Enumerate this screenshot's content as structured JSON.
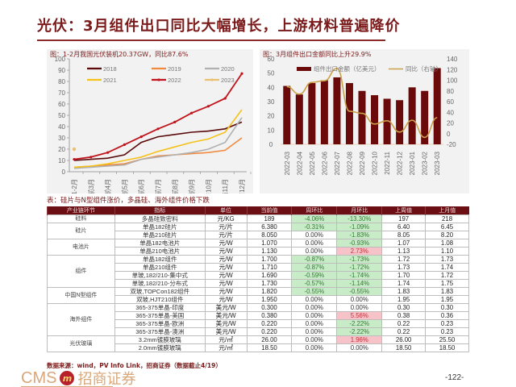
{
  "page": {
    "title": "光伏：3月组件出口同比大幅增长，上游材料普遍降价",
    "page_number": "-122-",
    "source_note": "数据来源：wind，PV Info Link，招商证券（数据截止4/19）",
    "logo": {
      "latin": "CMS",
      "mark": "m",
      "chinese": "招商证券"
    }
  },
  "colors": {
    "brand": "#7a1a1a",
    "table_header": "#6b0f14",
    "positive_cell": "#f6c4c8",
    "negative_cell": "#c8ecc8"
  },
  "chart_data": [
    {
      "type": "line",
      "title": "图：1-2月我国光伏装机20.37GW，同比87.6%",
      "xlabel": "",
      "ylabel": "",
      "ylim": [
        0,
        100
      ],
      "yticks": [
        0,
        10,
        20,
        30,
        40,
        50,
        60,
        70,
        80,
        90,
        100
      ],
      "grid": false,
      "legend_position": "top",
      "categories": [
        "1-2月",
        "前3月",
        "前4月",
        "前5月",
        "前6月",
        "前7月",
        "前8月",
        "前9月",
        "前10月",
        "前11月",
        "前12月"
      ],
      "series": [
        {
          "name": "2018",
          "color": "#5a0a0a",
          "values": [
            10,
            11,
            12,
            15,
            26,
            31,
            33,
            35,
            36,
            38,
            44
          ]
        },
        {
          "name": "2019",
          "color": "#f08a40",
          "values": [
            4,
            5,
            6,
            7,
            11,
            14,
            15,
            16,
            17,
            19,
            30
          ]
        },
        {
          "name": "2020",
          "color": "#b0b0b0",
          "values": [
            3,
            4,
            5,
            6,
            11,
            13,
            15,
            17,
            20,
            26,
            48
          ]
        },
        {
          "name": "2021",
          "color": "#f5c21b",
          "values": [
            4,
            5,
            7,
            10,
            13,
            18,
            22,
            26,
            29,
            35,
            55
          ]
        },
        {
          "name": "2022",
          "color": "#c0141c",
          "values": [
            11,
            13,
            17,
            24,
            31,
            38,
            44,
            52,
            58,
            65,
            87
          ]
        },
        {
          "name": "2023",
          "color": "#e8c070",
          "values": [
            20,
            null,
            null,
            null,
            null,
            null,
            null,
            null,
            null,
            null,
            null
          ]
        }
      ]
    },
    {
      "type": "bar",
      "title": "图：3月组件出口金额同比上升29.9%",
      "xlabel": "",
      "ylabel": "",
      "ylim": [
        0,
        60
      ],
      "yticks": [
        0,
        10,
        20,
        30,
        40,
        50,
        60
      ],
      "y2lim": [
        -20,
        140
      ],
      "y2ticks": [
        -20,
        0,
        20,
        40,
        60,
        80,
        100,
        120,
        140
      ],
      "grid": false,
      "legend_position": "top",
      "categories": [
        "2022-03",
        "2022-04",
        "2022-05",
        "2022-06",
        "2022-07",
        "2022-08",
        "2022-09",
        "2022-10",
        "2022-11",
        "2022-12",
        "2023-01",
        "2023-02",
        "2023-03"
      ],
      "series": [
        {
          "name": "组件出口金额（亿美元）",
          "type": "bar",
          "axis": "left",
          "color": "#6b0a0a",
          "values": [
            41,
            35,
            43,
            45,
            47,
            43,
            37.5,
            34.5,
            32,
            31,
            40,
            37.5,
            53.5
          ]
        },
        {
          "name": "同比（右轴）",
          "type": "line",
          "axis": "right",
          "color": "#c9a24a",
          "values": [
            88,
            74,
            96,
            99,
            122,
            42,
            38,
            18,
            24,
            3,
            25,
            -7,
            30
          ]
        }
      ]
    }
  ],
  "table": {
    "caption": "表：硅片与N型组件涨价，多晶硅、海外组件价格下跌",
    "headers": [
      "产业链环节",
      "指标",
      "单位",
      "当前值",
      "周环比",
      "月环比",
      "上周值",
      "上月值"
    ],
    "segments": [
      {
        "label": "硅料",
        "rowspan": 1
      },
      {
        "label": "硅片",
        "rowspan": 2
      },
      {
        "label": "电池片",
        "rowspan": 2
      },
      {
        "label": "组件",
        "rowspan": 4
      },
      {
        "label": "中国N型组件",
        "rowspan": 2
      },
      {
        "label": "海外组件",
        "rowspan": 4
      },
      {
        "label": "光伏玻璃",
        "rowspan": 2
      }
    ],
    "rows": [
      {
        "name": "多晶硅致密料",
        "unit": "元/KG",
        "current": "189",
        "wow": "-4.06%",
        "wow_tone": "green",
        "mom": "-13.30%",
        "mom_tone": "green",
        "last_week": "197",
        "last_month": "218"
      },
      {
        "name": "单晶182硅片",
        "unit": "元/片",
        "current": "6.380",
        "wow": "-0.31%",
        "wow_tone": "green",
        "mom": "-1.09%",
        "mom_tone": "green",
        "last_week": "6.40",
        "last_month": "6.45"
      },
      {
        "name": "单晶210硅片",
        "unit": "元/片",
        "current": "8.050",
        "wow": "0.00%",
        "wow_tone": "neutral",
        "mom": "-1.83%",
        "mom_tone": "green",
        "last_week": "8.05",
        "last_month": "8.20"
      },
      {
        "name": "单晶182电池片",
        "unit": "元/W",
        "current": "1.070",
        "wow": "0.00%",
        "wow_tone": "neutral",
        "mom": "-0.93%",
        "mom_tone": "green",
        "last_week": "1.07",
        "last_month": "1.08"
      },
      {
        "name": "单晶210电池片",
        "unit": "元/W",
        "current": "1.130",
        "wow": "0.00%",
        "wow_tone": "neutral",
        "mom": "2.73%",
        "mom_tone": "red",
        "last_week": "1.13",
        "last_month": "1.10"
      },
      {
        "name": "单晶182组件",
        "unit": "元/W",
        "current": "1.700",
        "wow": "-0.87%",
        "wow_tone": "green",
        "mom": "-1.73%",
        "mom_tone": "green",
        "last_week": "1.72",
        "last_month": "1.73"
      },
      {
        "name": "单晶210组件",
        "unit": "元/W",
        "current": "1.710",
        "wow": "-0.87%",
        "wow_tone": "green",
        "mom": "-1.72%",
        "mom_tone": "green",
        "last_week": "1.73",
        "last_month": "1.74"
      },
      {
        "name": "单玻,182/210-集中式",
        "unit": "元/W",
        "current": "1.690",
        "wow": "-0.59%",
        "wow_tone": "green",
        "mom": "-1.74%",
        "mom_tone": "green",
        "last_week": "1.70",
        "last_month": "1.72"
      },
      {
        "name": "单玻,182/210-分布式",
        "unit": "元/W",
        "current": "1.730",
        "wow": "-0.57%",
        "wow_tone": "green",
        "mom": "-1.14%",
        "mom_tone": "green",
        "last_week": "1.74",
        "last_month": "1.75"
      },
      {
        "name": "双玻,TOPCon182组件",
        "unit": "元/W",
        "current": "1.820",
        "wow": "-0.55%",
        "wow_tone": "green",
        "mom": "-0.55%",
        "mom_tone": "green",
        "last_week": "1.83",
        "last_month": "1.83"
      },
      {
        "name": "双玻,HJT210组件",
        "unit": "元/W",
        "current": "1.950",
        "wow": "0.00%",
        "wow_tone": "neutral",
        "mom": "0.00%",
        "mom_tone": "neutral",
        "last_week": "1.95",
        "last_month": "1.95"
      },
      {
        "name": "365-375单晶-印度",
        "unit": "美元/W",
        "current": "0.300",
        "wow": "0.00%",
        "wow_tone": "neutral",
        "mom": "0.00%",
        "mom_tone": "neutral",
        "last_week": "0.30",
        "last_month": "0.30"
      },
      {
        "name": "365-375单晶-美国",
        "unit": "美元/W",
        "current": "0.380",
        "wow": "0.00%",
        "wow_tone": "neutral",
        "mom": "5.56%",
        "mom_tone": "red",
        "last_week": "0.38",
        "last_month": "0.36"
      },
      {
        "name": "365-375单晶-欧洲",
        "unit": "美元/W",
        "current": "0.220",
        "wow": "0.00%",
        "wow_tone": "neutral",
        "mom": "-2.22%",
        "mom_tone": "green",
        "last_week": "0.22",
        "last_month": "0.23"
      },
      {
        "name": "365-375单晶-澳洲",
        "unit": "美元/W",
        "current": "0.220",
        "wow": "0.00%",
        "wow_tone": "neutral",
        "mom": "-2.22%",
        "mom_tone": "green",
        "last_week": "0.22",
        "last_month": "0.23"
      },
      {
        "name": "3.2mm镀膜玻璃",
        "unit": "元/㎡",
        "current": "26.00",
        "wow": "0.00%",
        "wow_tone": "neutral",
        "mom": "1.96%",
        "mom_tone": "red",
        "last_week": "26.00",
        "last_month": "25.50"
      },
      {
        "name": "2.0mm镀膜玻璃",
        "unit": "元/㎡",
        "current": "18.50",
        "wow": "0.00%",
        "wow_tone": "neutral",
        "mom": "0.00%",
        "mom_tone": "neutral",
        "last_week": "18.50",
        "last_month": "18.50"
      }
    ]
  }
}
